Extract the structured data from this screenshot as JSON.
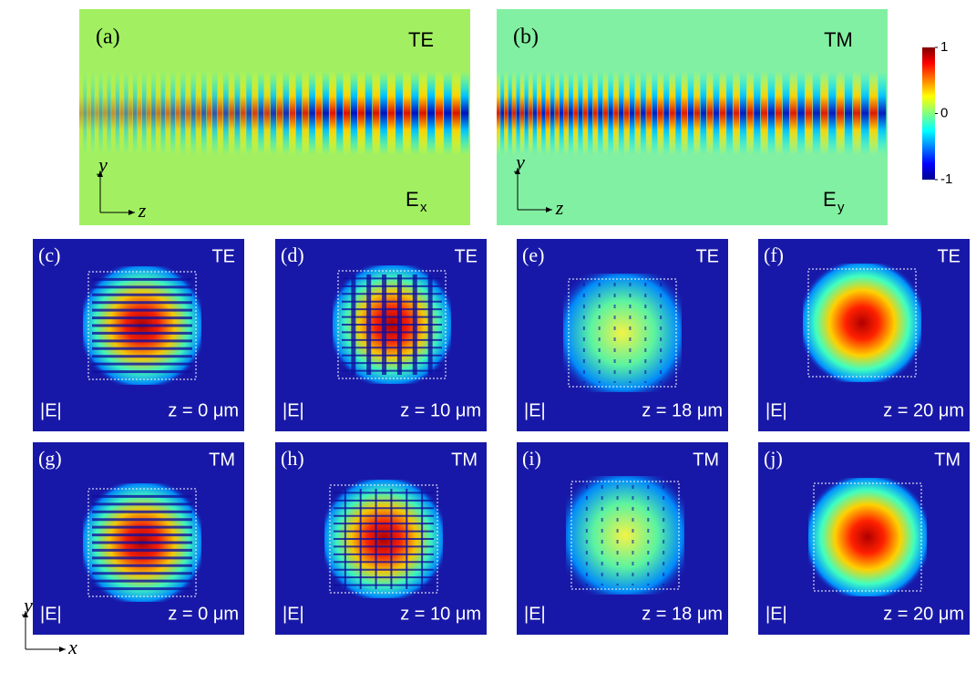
{
  "top_panels": [
    {
      "label": "(a)",
      "mode": "TE",
      "field": {
        "symbol": "E",
        "subscript": "x"
      },
      "axes": {
        "vertical": "y",
        "horizontal": "z"
      }
    },
    {
      "label": "(b)",
      "mode": "TM",
      "field": {
        "symbol": "E",
        "subscript": "y"
      },
      "axes": {
        "vertical": "y",
        "horizontal": "z"
      }
    }
  ],
  "colorbar": {
    "lim": [
      -1,
      1
    ],
    "ticks": [
      1,
      0,
      -1
    ]
  },
  "mode_panels": [
    {
      "label": "(c)",
      "mode": "TE",
      "quantity": "|E|",
      "position": "z = 0 μm"
    },
    {
      "label": "(d)",
      "mode": "TE",
      "quantity": "|E|",
      "position": "z = 10 μm"
    },
    {
      "label": "(e)",
      "mode": "TE",
      "quantity": "|E|",
      "position": "z = 18 μm"
    },
    {
      "label": "(f)",
      "mode": "TE",
      "quantity": "|E|",
      "position": "z = 20 μm"
    },
    {
      "label": "(g)",
      "mode": "TM",
      "quantity": "|E|",
      "position": "z = 0 μm"
    },
    {
      "label": "(h)",
      "mode": "TM",
      "quantity": "|E|",
      "position": "z = 10 μm"
    },
    {
      "label": "(i)",
      "mode": "TM",
      "quantity": "|E|",
      "position": "z = 18 μm"
    },
    {
      "label": "(j)",
      "mode": "TM",
      "quantity": "|E|",
      "position": "z = 20 μm"
    }
  ],
  "axes": {
    "vertical": "y",
    "horizontal": "x"
  }
}
